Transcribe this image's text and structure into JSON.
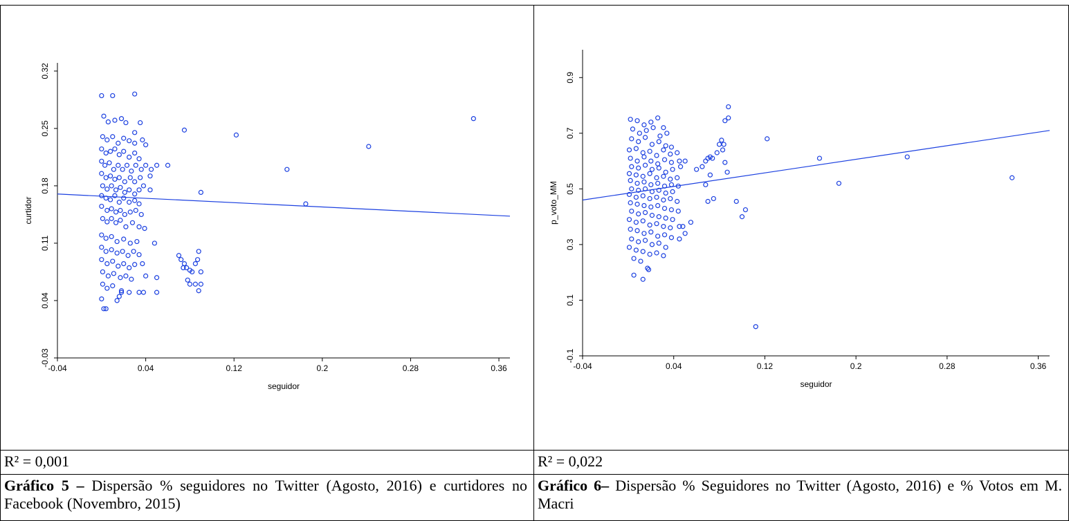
{
  "panels": [
    {
      "r2_text": "R² = 0,001",
      "caption_bold": "Gráfico 5 –",
      "caption_rest": " Dispersão % seguidores no Twitter (Agosto, 2016) e curtidores no Facebook (Novembro, 2015)"
    },
    {
      "r2_text": "R² = 0,022",
      "caption_bold": "Gráfico 6–",
      "caption_rest": " Dispersão % Seguidores no Twitter (Agosto, 2016) e % Votos em M. Macri"
    }
  ],
  "chart_data": [
    {
      "type": "scatter",
      "xlabel": "seguidor",
      "ylabel": "curtidor",
      "xlim": [
        -0.04,
        0.37
      ],
      "ylim": [
        -0.03,
        0.33
      ],
      "xticks": [
        -0.04,
        0.04,
        0.12,
        0.2,
        0.28,
        0.36
      ],
      "xtick_labels": [
        "-0.04",
        "0.04",
        "0.12",
        "0.2",
        "0.28",
        "0.36"
      ],
      "yticks": [
        -0.03,
        0.04,
        0.11,
        0.18,
        0.25,
        0.32
      ],
      "ytick_labels": [
        "-0.03",
        "0.04",
        "0.11",
        "0.18",
        "0.25",
        "0.32"
      ],
      "color": "#1a3fe0",
      "trendline": {
        "x": [
          -0.04,
          0.37
        ],
        "y": [
          0.17,
          0.143
        ]
      },
      "points": [
        [
          0.0,
          0.29
        ],
        [
          0.01,
          0.29
        ],
        [
          0.03,
          0.292
        ],
        [
          0.002,
          0.265
        ],
        [
          0.006,
          0.258
        ],
        [
          0.012,
          0.26
        ],
        [
          0.018,
          0.262
        ],
        [
          0.022,
          0.257
        ],
        [
          0.03,
          0.245
        ],
        [
          0.035,
          0.257
        ],
        [
          0.001,
          0.24
        ],
        [
          0.005,
          0.236
        ],
        [
          0.01,
          0.24
        ],
        [
          0.015,
          0.232
        ],
        [
          0.02,
          0.238
        ],
        [
          0.025,
          0.235
        ],
        [
          0.03,
          0.232
        ],
        [
          0.037,
          0.236
        ],
        [
          0.04,
          0.23
        ],
        [
          0.0,
          0.225
        ],
        [
          0.004,
          0.22
        ],
        [
          0.008,
          0.222
        ],
        [
          0.012,
          0.225
        ],
        [
          0.016,
          0.218
        ],
        [
          0.02,
          0.222
        ],
        [
          0.025,
          0.215
        ],
        [
          0.03,
          0.22
        ],
        [
          0.034,
          0.213
        ],
        [
          0.0,
          0.21
        ],
        [
          0.003,
          0.205
        ],
        [
          0.007,
          0.208
        ],
        [
          0.011,
          0.2
        ],
        [
          0.015,
          0.205
        ],
        [
          0.019,
          0.2
        ],
        [
          0.023,
          0.205
        ],
        [
          0.027,
          0.198
        ],
        [
          0.031,
          0.205
        ],
        [
          0.036,
          0.2
        ],
        [
          0.04,
          0.205
        ],
        [
          0.045,
          0.2
        ],
        [
          0.05,
          0.205
        ],
        [
          0.0,
          0.195
        ],
        [
          0.004,
          0.19
        ],
        [
          0.008,
          0.192
        ],
        [
          0.012,
          0.188
        ],
        [
          0.016,
          0.19
        ],
        [
          0.021,
          0.185
        ],
        [
          0.026,
          0.19
        ],
        [
          0.03,
          0.185
        ],
        [
          0.035,
          0.19
        ],
        [
          0.044,
          0.192
        ],
        [
          0.001,
          0.18
        ],
        [
          0.005,
          0.176
        ],
        [
          0.009,
          0.18
        ],
        [
          0.013,
          0.175
        ],
        [
          0.017,
          0.178
        ],
        [
          0.021,
          0.172
        ],
        [
          0.025,
          0.175
        ],
        [
          0.03,
          0.17
        ],
        [
          0.034,
          0.175
        ],
        [
          0.038,
          0.18
        ],
        [
          0.044,
          0.175
        ],
        [
          0.0,
          0.168
        ],
        [
          0.004,
          0.165
        ],
        [
          0.008,
          0.163
        ],
        [
          0.012,
          0.168
        ],
        [
          0.016,
          0.16
        ],
        [
          0.02,
          0.165
        ],
        [
          0.025,
          0.16
        ],
        [
          0.03,
          0.162
        ],
        [
          0.034,
          0.158
        ],
        [
          0.0,
          0.155
        ],
        [
          0.005,
          0.15
        ],
        [
          0.009,
          0.152
        ],
        [
          0.013,
          0.148
        ],
        [
          0.017,
          0.15
        ],
        [
          0.021,
          0.145
        ],
        [
          0.026,
          0.148
        ],
        [
          0.031,
          0.15
        ],
        [
          0.036,
          0.145
        ],
        [
          0.001,
          0.14
        ],
        [
          0.005,
          0.136
        ],
        [
          0.009,
          0.14
        ],
        [
          0.013,
          0.135
        ],
        [
          0.017,
          0.138
        ],
        [
          0.022,
          0.13
        ],
        [
          0.028,
          0.135
        ],
        [
          0.034,
          0.13
        ],
        [
          0.039,
          0.128
        ],
        [
          0.0,
          0.12
        ],
        [
          0.004,
          0.116
        ],
        [
          0.009,
          0.118
        ],
        [
          0.014,
          0.112
        ],
        [
          0.02,
          0.115
        ],
        [
          0.026,
          0.11
        ],
        [
          0.032,
          0.112
        ],
        [
          0.048,
          0.11
        ],
        [
          0.0,
          0.105
        ],
        [
          0.004,
          0.1
        ],
        [
          0.009,
          0.102
        ],
        [
          0.014,
          0.098
        ],
        [
          0.019,
          0.1
        ],
        [
          0.024,
          0.095
        ],
        [
          0.029,
          0.1
        ],
        [
          0.034,
          0.096
        ],
        [
          0.0,
          0.09
        ],
        [
          0.005,
          0.085
        ],
        [
          0.01,
          0.088
        ],
        [
          0.015,
          0.082
        ],
        [
          0.02,
          0.085
        ],
        [
          0.025,
          0.08
        ],
        [
          0.03,
          0.084
        ],
        [
          0.037,
          0.085
        ],
        [
          0.001,
          0.075
        ],
        [
          0.006,
          0.07
        ],
        [
          0.011,
          0.073
        ],
        [
          0.017,
          0.068
        ],
        [
          0.022,
          0.07
        ],
        [
          0.027,
          0.066
        ],
        [
          0.04,
          0.07
        ],
        [
          0.05,
          0.068
        ],
        [
          0.001,
          0.06
        ],
        [
          0.005,
          0.055
        ],
        [
          0.01,
          0.058
        ],
        [
          0.018,
          0.052
        ],
        [
          0.025,
          0.05
        ],
        [
          0.034,
          0.05
        ],
        [
          0.038,
          0.05
        ],
        [
          0.05,
          0.05
        ],
        [
          0.0,
          0.042
        ],
        [
          0.014,
          0.04
        ],
        [
          0.016,
          0.045
        ],
        [
          0.018,
          0.05
        ],
        [
          0.002,
          0.03
        ],
        [
          0.004,
          0.03
        ],
        [
          0.06,
          0.205
        ],
        [
          0.075,
          0.248
        ],
        [
          0.07,
          0.095
        ],
        [
          0.072,
          0.09
        ],
        [
          0.075,
          0.085
        ],
        [
          0.074,
          0.08
        ],
        [
          0.077,
          0.08
        ],
        [
          0.08,
          0.077
        ],
        [
          0.082,
          0.075
        ],
        [
          0.085,
          0.085
        ],
        [
          0.087,
          0.09
        ],
        [
          0.09,
          0.075
        ],
        [
          0.078,
          0.065
        ],
        [
          0.08,
          0.06
        ],
        [
          0.088,
          0.052
        ],
        [
          0.088,
          0.1
        ],
        [
          0.085,
          0.06
        ],
        [
          0.09,
          0.06
        ],
        [
          0.09,
          0.172
        ],
        [
          0.122,
          0.242
        ],
        [
          0.168,
          0.2
        ],
        [
          0.185,
          0.158
        ],
        [
          0.242,
          0.228
        ],
        [
          0.337,
          0.262
        ]
      ]
    },
    {
      "type": "scatter",
      "xlabel": "seguidor",
      "ylabel": "p_voto_MM",
      "xlim": [
        -0.04,
        0.37
      ],
      "ylim": [
        -0.1,
        1.0
      ],
      "xticks": [
        -0.04,
        0.04,
        0.12,
        0.2,
        0.28,
        0.36
      ],
      "xtick_labels": [
        "-0.04",
        "0.04",
        "0.12",
        "0.2",
        "0.28",
        "0.36"
      ],
      "yticks": [
        -0.1,
        0.1,
        0.3,
        0.5,
        0.7,
        0.9
      ],
      "ytick_labels": [
        "-0.1",
        "0.1",
        "0.3",
        "0.5",
        "0.7",
        "0.9"
      ],
      "color": "#1a3fe0",
      "trendline": {
        "x": [
          -0.04,
          0.37
        ],
        "y": [
          0.46,
          0.71
        ]
      },
      "points": [
        [
          0.002,
          0.75
        ],
        [
          0.008,
          0.745
        ],
        [
          0.014,
          0.73
        ],
        [
          0.02,
          0.74
        ],
        [
          0.026,
          0.755
        ],
        [
          0.031,
          0.72
        ],
        [
          0.004,
          0.715
        ],
        [
          0.01,
          0.7
        ],
        [
          0.016,
          0.71
        ],
        [
          0.022,
          0.72
        ],
        [
          0.028,
          0.69
        ],
        [
          0.034,
          0.7
        ],
        [
          0.003,
          0.68
        ],
        [
          0.009,
          0.67
        ],
        [
          0.015,
          0.685
        ],
        [
          0.021,
          0.66
        ],
        [
          0.027,
          0.67
        ],
        [
          0.033,
          0.655
        ],
        [
          0.038,
          0.65
        ],
        [
          0.001,
          0.64
        ],
        [
          0.007,
          0.645
        ],
        [
          0.013,
          0.63
        ],
        [
          0.019,
          0.635
        ],
        [
          0.025,
          0.62
        ],
        [
          0.031,
          0.64
        ],
        [
          0.037,
          0.625
        ],
        [
          0.043,
          0.63
        ],
        [
          0.002,
          0.61
        ],
        [
          0.008,
          0.6
        ],
        [
          0.014,
          0.615
        ],
        [
          0.02,
          0.6
        ],
        [
          0.026,
          0.59
        ],
        [
          0.032,
          0.605
        ],
        [
          0.038,
          0.595
        ],
        [
          0.045,
          0.6
        ],
        [
          0.05,
          0.6
        ],
        [
          0.003,
          0.58
        ],
        [
          0.009,
          0.575
        ],
        [
          0.015,
          0.585
        ],
        [
          0.021,
          0.57
        ],
        [
          0.027,
          0.575
        ],
        [
          0.033,
          0.56
        ],
        [
          0.039,
          0.57
        ],
        [
          0.046,
          0.58
        ],
        [
          0.001,
          0.555
        ],
        [
          0.007,
          0.55
        ],
        [
          0.013,
          0.545
        ],
        [
          0.019,
          0.555
        ],
        [
          0.025,
          0.54
        ],
        [
          0.031,
          0.545
        ],
        [
          0.037,
          0.535
        ],
        [
          0.043,
          0.54
        ],
        [
          0.002,
          0.53
        ],
        [
          0.008,
          0.52
        ],
        [
          0.014,
          0.525
        ],
        [
          0.02,
          0.515
        ],
        [
          0.026,
          0.52
        ],
        [
          0.032,
          0.51
        ],
        [
          0.038,
          0.515
        ],
        [
          0.044,
          0.51
        ],
        [
          0.003,
          0.5
        ],
        [
          0.009,
          0.495
        ],
        [
          0.015,
          0.5
        ],
        [
          0.021,
          0.49
        ],
        [
          0.027,
          0.495
        ],
        [
          0.033,
          0.485
        ],
        [
          0.039,
          0.49
        ],
        [
          0.001,
          0.48
        ],
        [
          0.007,
          0.47
        ],
        [
          0.013,
          0.475
        ],
        [
          0.019,
          0.465
        ],
        [
          0.025,
          0.47
        ],
        [
          0.031,
          0.46
        ],
        [
          0.037,
          0.465
        ],
        [
          0.043,
          0.455
        ],
        [
          0.002,
          0.45
        ],
        [
          0.008,
          0.445
        ],
        [
          0.014,
          0.44
        ],
        [
          0.02,
          0.435
        ],
        [
          0.026,
          0.44
        ],
        [
          0.032,
          0.43
        ],
        [
          0.038,
          0.425
        ],
        [
          0.044,
          0.42
        ],
        [
          0.003,
          0.42
        ],
        [
          0.009,
          0.41
        ],
        [
          0.015,
          0.415
        ],
        [
          0.021,
          0.405
        ],
        [
          0.027,
          0.4
        ],
        [
          0.033,
          0.395
        ],
        [
          0.039,
          0.39
        ],
        [
          0.001,
          0.39
        ],
        [
          0.007,
          0.38
        ],
        [
          0.013,
          0.385
        ],
        [
          0.019,
          0.37
        ],
        [
          0.025,
          0.375
        ],
        [
          0.031,
          0.365
        ],
        [
          0.037,
          0.36
        ],
        [
          0.045,
          0.365
        ],
        [
          0.002,
          0.355
        ],
        [
          0.008,
          0.35
        ],
        [
          0.014,
          0.34
        ],
        [
          0.02,
          0.345
        ],
        [
          0.026,
          0.33
        ],
        [
          0.032,
          0.335
        ],
        [
          0.038,
          0.325
        ],
        [
          0.05,
          0.34
        ],
        [
          0.003,
          0.32
        ],
        [
          0.009,
          0.31
        ],
        [
          0.015,
          0.315
        ],
        [
          0.021,
          0.3
        ],
        [
          0.027,
          0.305
        ],
        [
          0.033,
          0.29
        ],
        [
          0.001,
          0.29
        ],
        [
          0.007,
          0.28
        ],
        [
          0.013,
          0.275
        ],
        [
          0.019,
          0.265
        ],
        [
          0.025,
          0.27
        ],
        [
          0.031,
          0.26
        ],
        [
          0.005,
          0.25
        ],
        [
          0.011,
          0.24
        ],
        [
          0.017,
          0.215
        ],
        [
          0.005,
          0.19
        ],
        [
          0.013,
          0.175
        ],
        [
          0.018,
          0.21
        ],
        [
          0.045,
          0.32
        ],
        [
          0.048,
          0.365
        ],
        [
          0.055,
          0.38
        ],
        [
          0.06,
          0.57
        ],
        [
          0.065,
          0.58
        ],
        [
          0.068,
          0.6
        ],
        [
          0.07,
          0.61
        ],
        [
          0.072,
          0.615
        ],
        [
          0.074,
          0.61
        ],
        [
          0.078,
          0.63
        ],
        [
          0.08,
          0.66
        ],
        [
          0.082,
          0.675
        ],
        [
          0.084,
          0.66
        ],
        [
          0.083,
          0.64
        ],
        [
          0.085,
          0.595
        ],
        [
          0.087,
          0.56
        ],
        [
          0.072,
          0.55
        ],
        [
          0.068,
          0.515
        ],
        [
          0.07,
          0.455
        ],
        [
          0.075,
          0.465
        ],
        [
          0.085,
          0.745
        ],
        [
          0.088,
          0.755
        ],
        [
          0.088,
          0.795
        ],
        [
          0.095,
          0.455
        ],
        [
          0.1,
          0.4
        ],
        [
          0.103,
          0.425
        ],
        [
          0.112,
          0.005
        ],
        [
          0.122,
          0.68
        ],
        [
          0.168,
          0.61
        ],
        [
          0.185,
          0.52
        ],
        [
          0.245,
          0.615
        ],
        [
          0.337,
          0.54
        ]
      ]
    }
  ]
}
